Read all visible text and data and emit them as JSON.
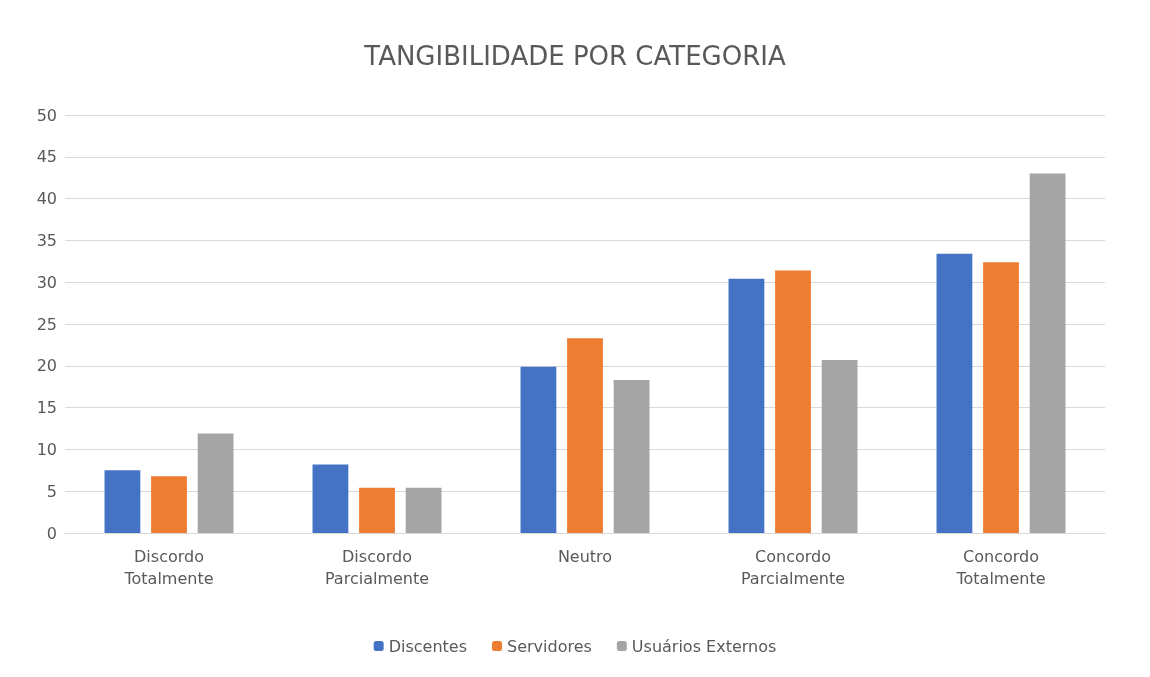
{
  "chart_data": {
    "type": "bar",
    "title": "TANGIBILIDADE POR CATEGORIA",
    "categories": [
      "Discordo Totalmente",
      "Discordo Parcialmente",
      "Neutro",
      "Concordo Parcialmente",
      "Concordo Totalmente"
    ],
    "series": [
      {
        "name": "Discentes",
        "color": "#4472c4",
        "values": [
          7.5,
          8.2,
          19.9,
          30.4,
          33.4
        ]
      },
      {
        "name": "Servidores",
        "color": "#ed7d31",
        "values": [
          6.8,
          5.4,
          23.3,
          31.4,
          32.4
        ]
      },
      {
        "name": "Usuários Externos",
        "color": "#a5a5a5",
        "values": [
          11.9,
          5.4,
          18.3,
          20.7,
          43.0
        ]
      }
    ],
    "ylim": [
      0,
      50
    ],
    "yticks": [
      0,
      5,
      10,
      15,
      20,
      25,
      30,
      35,
      40,
      45,
      50
    ],
    "grid": "y",
    "legend": "bottom"
  }
}
